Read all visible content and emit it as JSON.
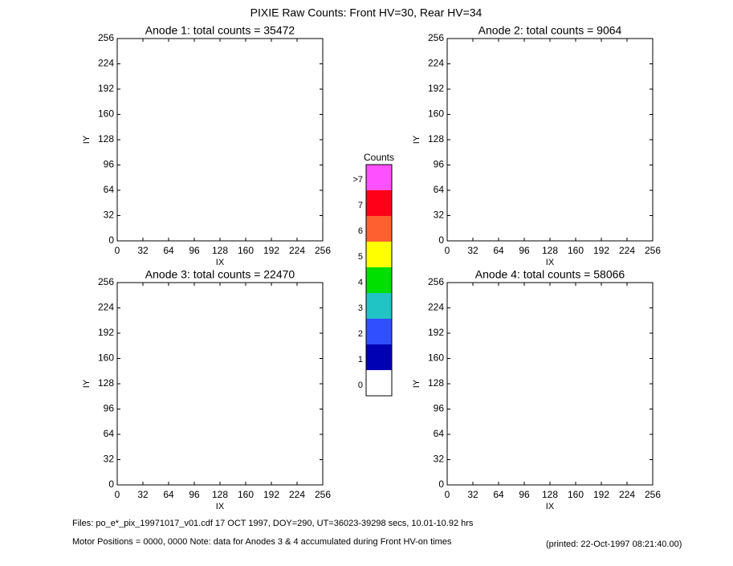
{
  "title": "PIXIE Raw Counts:  Front HV=30, Rear HV=34",
  "colorbar": {
    "title": "Counts",
    "labels": [
      "0",
      "1",
      "2",
      "3",
      "4",
      "5",
      "6",
      "7",
      ">7"
    ],
    "colors": [
      "#ffffff",
      "#0000b4",
      "#3050ff",
      "#20c4c4",
      "#00e000",
      "#ffff00",
      "#ff6030",
      "#ff0018",
      "#ff50ff"
    ]
  },
  "footer": {
    "files": "Files: po_e*_pix_19971017_v01.cdf     17 OCT 1997, DOY=290, UT=36023-39298 secs, 10.01-10.92 hrs",
    "motor": "Motor Positions = 0000, 0000    Note: data for Anodes 3 & 4 accumulated during Front HV-on times",
    "printed": "(printed: 22-Oct-1997 08:21:40.00)"
  },
  "chart_data": [
    {
      "type": "heatmap",
      "title": "Anode 1: total counts = 35472",
      "xlabel": "IX",
      "ylabel": "IY",
      "xlim": [
        0,
        256
      ],
      "ylim": [
        0,
        256
      ],
      "xticks": [
        0,
        32,
        64,
        96,
        128,
        160,
        192,
        224,
        256
      ],
      "yticks": [
        0,
        32,
        64,
        96,
        128,
        160,
        192,
        224,
        256
      ]
    },
    {
      "type": "heatmap",
      "title": "Anode 2: total counts = 9064",
      "xlabel": "IX",
      "ylabel": "IY",
      "xlim": [
        0,
        256
      ],
      "ylim": [
        0,
        256
      ],
      "xticks": [
        0,
        32,
        64,
        96,
        128,
        160,
        192,
        224,
        256
      ],
      "yticks": [
        0,
        32,
        64,
        96,
        128,
        160,
        192,
        224,
        256
      ]
    },
    {
      "type": "heatmap",
      "title": "Anode 3: total counts = 22470",
      "xlabel": "IX",
      "ylabel": "IY",
      "xlim": [
        0,
        256
      ],
      "ylim": [
        0,
        256
      ],
      "xticks": [
        0,
        32,
        64,
        96,
        128,
        160,
        192,
        224,
        256
      ],
      "yticks": [
        0,
        32,
        64,
        96,
        128,
        160,
        192,
        224,
        256
      ]
    },
    {
      "type": "heatmap",
      "title": "Anode 4: total counts = 58066",
      "xlabel": "IX",
      "ylabel": "IY",
      "xlim": [
        0,
        256
      ],
      "ylim": [
        0,
        256
      ],
      "xticks": [
        0,
        32,
        64,
        96,
        128,
        160,
        192,
        224,
        256
      ],
      "yticks": [
        0,
        32,
        64,
        96,
        128,
        160,
        192,
        224,
        256
      ]
    }
  ]
}
